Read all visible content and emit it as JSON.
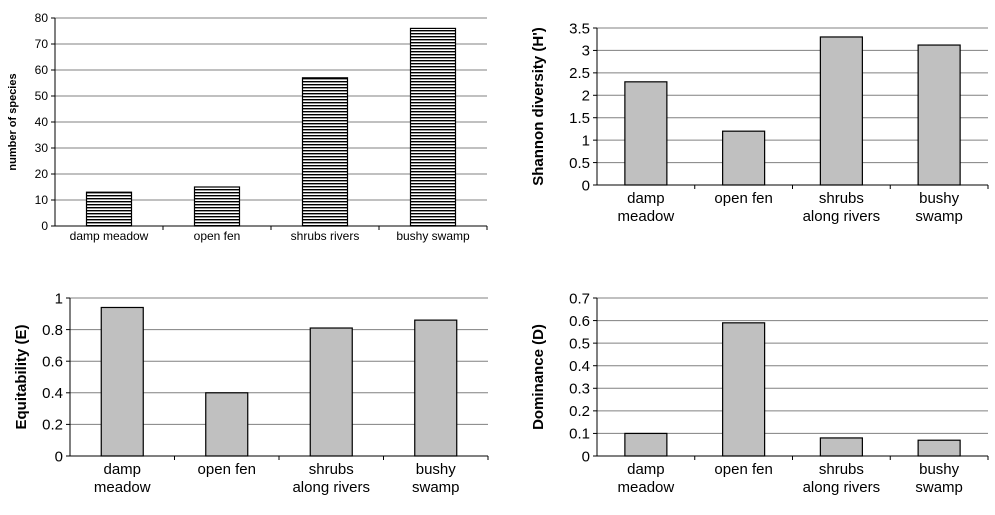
{
  "chart_data": [
    {
      "type": "bar",
      "categories": [
        "damp meadow",
        "open fen",
        "shrubs rivers",
        "bushy swamp"
      ],
      "values": [
        13,
        15,
        57,
        76
      ],
      "title": "",
      "xlabel": "",
      "ylabel": "number of species",
      "ylim": [
        0,
        80
      ],
      "yticks": [
        "0",
        "10",
        "20",
        "30",
        "40",
        "50",
        "60",
        "70",
        "80"
      ],
      "grid": true,
      "bar_fill": "horizontal-stripes"
    },
    {
      "type": "bar",
      "categories": [
        "damp meadow",
        "open fen",
        "shrubs along rivers",
        "bushy swamp"
      ],
      "values": [
        2.3,
        1.2,
        3.3,
        3.12
      ],
      "title": "",
      "xlabel": "",
      "ylabel": "Shannon diversity (H')",
      "ylim": [
        0,
        3.5
      ],
      "yticks": [
        "0",
        "0.5",
        "1",
        "1.5",
        "2",
        "2.5",
        "3",
        "3.5"
      ],
      "grid": true,
      "bar_color": "#c0c0c0"
    },
    {
      "type": "bar",
      "categories": [
        "damp meadow",
        "open fen",
        "shrubs along rivers",
        "bushy swamp"
      ],
      "values": [
        0.94,
        0.4,
        0.81,
        0.86
      ],
      "title": "",
      "xlabel": "",
      "ylabel": "Equitability (E)",
      "ylim": [
        0,
        1
      ],
      "yticks": [
        "0",
        "0.2",
        "0.4",
        "0.6",
        "0.8",
        "1"
      ],
      "grid": true,
      "bar_color": "#c0c0c0"
    },
    {
      "type": "bar",
      "categories": [
        "damp meadow",
        "open fen",
        "shrubs along rivers",
        "bushy swamp"
      ],
      "values": [
        0.1,
        0.59,
        0.08,
        0.07
      ],
      "title": "",
      "xlabel": "",
      "ylabel": "Dominance (D)",
      "ylim": [
        0,
        0.7
      ],
      "yticks": [
        "0",
        "0.1",
        "0.2",
        "0.3",
        "0.4",
        "0.5",
        "0.6",
        "0.7"
      ],
      "grid": true,
      "bar_color": "#c0c0c0"
    }
  ]
}
